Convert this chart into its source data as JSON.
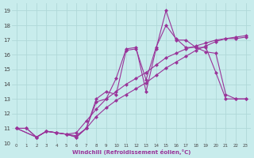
{
  "xlabel": "Windchill (Refroidissement éolien,°C)",
  "bg_color": "#c8ecec",
  "grid_color": "#b0d8d8",
  "line_color": "#993399",
  "xlim": [
    -0.5,
    23.5
  ],
  "ylim": [
    10,
    19.5
  ],
  "xticks": [
    0,
    1,
    2,
    3,
    4,
    5,
    6,
    7,
    8,
    9,
    10,
    11,
    12,
    13,
    14,
    15,
    16,
    17,
    18,
    19,
    20,
    21,
    22,
    23
  ],
  "yticks": [
    10,
    11,
    12,
    13,
    14,
    15,
    16,
    17,
    18,
    19
  ],
  "line1_x": [
    0,
    1,
    2,
    3,
    4,
    5,
    6,
    7,
    8,
    9,
    10,
    11,
    12,
    13,
    14,
    15,
    16,
    17,
    18,
    19,
    20,
    21,
    22,
    23
  ],
  "line1_y": [
    11.0,
    11.0,
    10.4,
    10.8,
    10.7,
    10.6,
    10.7,
    11.5,
    12.3,
    13.0,
    13.5,
    14.0,
    14.4,
    14.8,
    15.3,
    15.8,
    16.1,
    16.4,
    16.6,
    16.8,
    17.0,
    17.1,
    17.1,
    17.2
  ],
  "line2_x": [
    0,
    1,
    2,
    3,
    4,
    5,
    6,
    7,
    8,
    9,
    10,
    11,
    12,
    13,
    14,
    15,
    16,
    17,
    18,
    19,
    20,
    21,
    22,
    23
  ],
  "line2_y": [
    11.0,
    11.0,
    10.4,
    10.8,
    10.7,
    10.6,
    10.5,
    11.0,
    11.8,
    12.4,
    12.9,
    13.3,
    13.7,
    14.1,
    14.6,
    15.1,
    15.5,
    15.9,
    16.3,
    16.6,
    16.9,
    17.1,
    17.2,
    17.3
  ],
  "line3_x": [
    0,
    2,
    3,
    4,
    5,
    6,
    7,
    8,
    9,
    10,
    11,
    12,
    13,
    14,
    15,
    16,
    17,
    18,
    19,
    20,
    21,
    22,
    23
  ],
  "line3_y": [
    11.0,
    10.4,
    10.8,
    10.7,
    10.6,
    10.4,
    11.0,
    12.8,
    13.0,
    14.4,
    16.4,
    16.5,
    13.5,
    16.4,
    19.0,
    17.0,
    17.0,
    16.5,
    16.5,
    14.8,
    13.0,
    13.0,
    13.0
  ],
  "line4_x": [
    0,
    2,
    3,
    4,
    5,
    6,
    7,
    8,
    9,
    10,
    11,
    12,
    13,
    14,
    15,
    16,
    17,
    18,
    19,
    20,
    21,
    22,
    23
  ],
  "line4_y": [
    11.0,
    10.4,
    10.8,
    10.7,
    10.6,
    10.4,
    11.0,
    13.0,
    13.5,
    13.3,
    16.3,
    16.4,
    14.3,
    16.5,
    18.0,
    17.1,
    16.5,
    16.5,
    16.2,
    16.1,
    13.3,
    13.0,
    13.0
  ]
}
